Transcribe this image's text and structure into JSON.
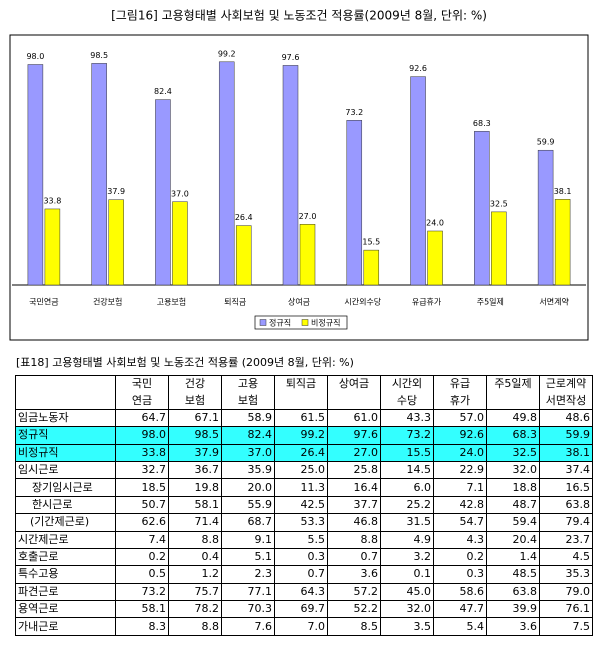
{
  "chart_data": {
    "type": "bar",
    "title": "[그림16] 고용형태별 사회보험 및 노동조건 적용률(2009년 8월, 단위: %)",
    "categories": [
      "국민연금",
      "건강보험",
      "고용보험",
      "퇴직금",
      "상여금",
      "시간외수당",
      "유급휴가",
      "주5일제",
      "서면계약"
    ],
    "series": [
      {
        "name": "정규직",
        "color": "#9999ff",
        "values": [
          98.0,
          98.5,
          82.4,
          99.2,
          97.6,
          73.2,
          92.6,
          68.3,
          59.9
        ],
        "value_labels": [
          "98.0",
          "98.5",
          "82.4",
          "99.2",
          "97.6",
          "73.2",
          "92.6",
          "68.3",
          "59.9"
        ]
      },
      {
        "name": "비정규직",
        "color": "#ffff00",
        "values": [
          33.8,
          37.9,
          37.0,
          26.4,
          27.0,
          15.5,
          24.0,
          32.5,
          38.1
        ],
        "value_labels": [
          "33.8",
          "37.9",
          "37.0",
          "26.4",
          "27.0",
          "15.5",
          "24.0",
          "32.5",
          "38.1"
        ]
      }
    ],
    "legend": "bottom"
  },
  "table": {
    "title": "[표18] 고용형태별 사회보험 및 노동조건 적용률 (2009년 8월, 단위: %)",
    "columns": [
      [
        "국민",
        "연금"
      ],
      [
        "건강",
        "보험"
      ],
      [
        "고용",
        "보험"
      ],
      [
        "퇴직금"
      ],
      [
        "상여금"
      ],
      [
        "시간외",
        "수당"
      ],
      [
        "유급",
        "휴가"
      ],
      [
        "주5일제"
      ],
      [
        "근로계약",
        "서면작성"
      ]
    ],
    "rows": [
      [
        "임금노동자",
        "64.7",
        "67.1",
        "58.9",
        "61.5",
        "61.0",
        "43.3",
        "57.0",
        "49.8",
        "48.6"
      ],
      [
        "정규직",
        "98.0",
        "98.5",
        "82.4",
        "99.2",
        "97.6",
        "73.2",
        "92.6",
        "68.3",
        "59.9"
      ],
      [
        "비정규직",
        "33.8",
        "37.9",
        "37.0",
        "26.4",
        "27.0",
        "15.5",
        "24.0",
        "32.5",
        "38.1"
      ],
      [
        "임시근로",
        "32.7",
        "36.7",
        "35.9",
        "25.0",
        "25.8",
        "14.5",
        "22.9",
        "32.0",
        "37.4"
      ],
      [
        "장기임시근로",
        "18.5",
        "19.8",
        "20.0",
        "11.3",
        "16.4",
        "6.0",
        "7.1",
        "18.8",
        "16.5"
      ],
      [
        "한시근로",
        "50.7",
        "58.1",
        "55.9",
        "42.5",
        "37.7",
        "25.2",
        "42.8",
        "48.7",
        "63.8"
      ],
      [
        "(기간제근로)",
        "62.6",
        "71.4",
        "68.7",
        "53.3",
        "46.8",
        "31.5",
        "54.7",
        "59.4",
        "79.4"
      ],
      [
        "시간제근로",
        "7.4",
        "8.8",
        "9.1",
        "5.5",
        "8.8",
        "4.9",
        "4.3",
        "20.4",
        "23.7"
      ],
      [
        "호출근로",
        "0.2",
        "0.4",
        "5.1",
        "0.3",
        "0.7",
        "3.2",
        "0.2",
        "1.4",
        "4.5"
      ],
      [
        "특수고용",
        "0.5",
        "1.2",
        "2.3",
        "0.7",
        "3.6",
        "0.1",
        "0.3",
        "48.5",
        "35.3"
      ],
      [
        "파견근로",
        "73.2",
        "75.7",
        "77.1",
        "64.3",
        "57.2",
        "45.0",
        "58.6",
        "63.8",
        "79.0"
      ],
      [
        "용역근로",
        "58.1",
        "78.2",
        "70.3",
        "69.7",
        "52.2",
        "32.0",
        "47.7",
        "39.9",
        "76.1"
      ],
      [
        "가내근로",
        "8.3",
        "8.8",
        "7.6",
        "7.0",
        "8.5",
        "3.5",
        "5.4",
        "3.6",
        "7.5"
      ]
    ],
    "highlight_rows": [
      1,
      2
    ],
    "highlight_color": "#33ffff",
    "indented_rows": [
      4,
      5,
      6
    ]
  }
}
